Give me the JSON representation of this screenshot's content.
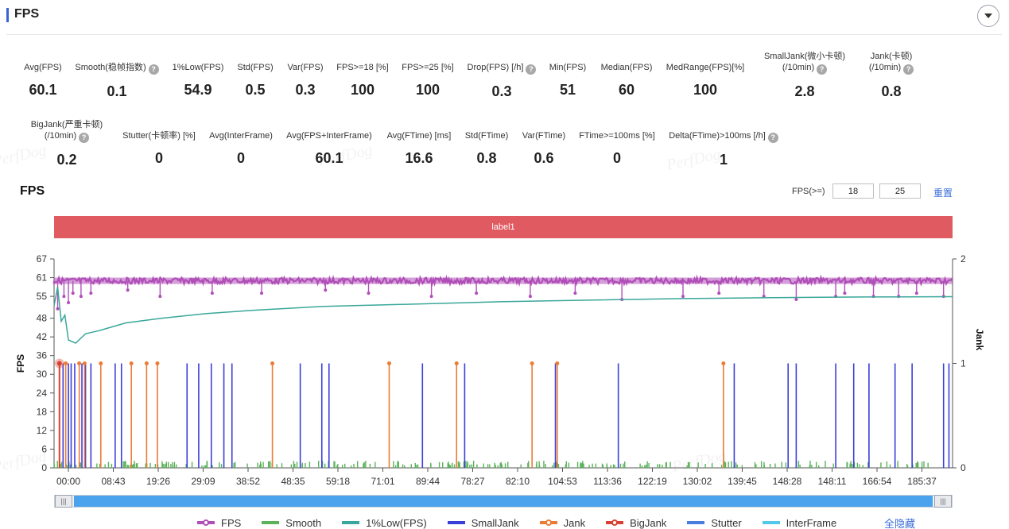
{
  "section": {
    "title": "FPS"
  },
  "stats_row1": [
    {
      "label": "Avg(FPS)",
      "value": "60.1",
      "help": false
    },
    {
      "label": "Smooth(稳帧指数)",
      "value": "0.1",
      "help": true
    },
    {
      "label": "1%Low(FPS)",
      "value": "54.9",
      "help": false
    },
    {
      "label": "Std(FPS)",
      "value": "0.5",
      "help": false
    },
    {
      "label": "Var(FPS)",
      "value": "0.3",
      "help": false
    },
    {
      "label": "FPS>=18 [%]",
      "value": "100",
      "help": false
    },
    {
      "label": "FPS>=25 [%]",
      "value": "100",
      "help": false
    },
    {
      "label": "Drop(FPS) [/h]",
      "value": "0.3",
      "help": true
    },
    {
      "label": "Min(FPS)",
      "value": "51",
      "help": false
    },
    {
      "label": "Median(FPS)",
      "value": "60",
      "help": false
    },
    {
      "label": "MedRange(FPS)[%]",
      "value": "100",
      "help": false
    },
    {
      "label": "SmallJank(微小卡顿)",
      "label2": "(/10min)",
      "value": "2.8",
      "help": true
    },
    {
      "label": "Jank(卡顿)",
      "label2": "(/10min)",
      "value": "0.8",
      "help": true
    }
  ],
  "stats_row2": [
    {
      "label": "BigJank(严重卡顿)",
      "label2": "(/10min)",
      "value": "0.2",
      "help": true
    },
    {
      "label": "Stutter(卡顿率) [%]",
      "value": "0",
      "help": false
    },
    {
      "label": "Avg(InterFrame)",
      "value": "0",
      "help": false
    },
    {
      "label": "Avg(FPS+InterFrame)",
      "value": "60.1",
      "help": false
    },
    {
      "label": "Avg(FTime) [ms]",
      "value": "16.6",
      "help": false
    },
    {
      "label": "Std(FTime)",
      "value": "0.8",
      "help": false
    },
    {
      "label": "Var(FTime)",
      "value": "0.6",
      "help": false
    },
    {
      "label": "FTime>=100ms [%]",
      "value": "0",
      "help": false
    },
    {
      "label": "Delta(FTime)>100ms [/h]",
      "value": "1",
      "help": true
    }
  ],
  "watermark": "PerfDog",
  "chart_header": {
    "title": "FPS",
    "threshold_label": "FPS(>=)",
    "threshold_low": "18",
    "threshold_high": "25",
    "reset": "重置"
  },
  "label_band": "label1",
  "legend": {
    "items": [
      {
        "name": "FPS",
        "color": "#b04fb8",
        "marker": true
      },
      {
        "name": "Smooth",
        "color": "#5bb25a",
        "marker": false
      },
      {
        "name": "1%Low(FPS)",
        "color": "#3aa79a",
        "marker": false
      },
      {
        "name": "SmallJank",
        "color": "#3b3fd9",
        "marker": false
      },
      {
        "name": "Jank",
        "color": "#ec7b35",
        "marker": true
      },
      {
        "name": "BigJank",
        "color": "#d9402f",
        "marker": true
      },
      {
        "name": "Stutter",
        "color": "#4a7fe0",
        "marker": false
      },
      {
        "name": "InterFrame",
        "color": "#54c8e8",
        "marker": false
      }
    ],
    "hide_all": "全隐藏"
  },
  "chart_data": {
    "type": "line",
    "ylabel_left": "FPS",
    "ylabel_right": "Jank",
    "y_ticks_left": [
      "0",
      "6",
      "12",
      "18",
      "24",
      "30",
      "36",
      "42",
      "48",
      "55",
      "61",
      "67"
    ],
    "y_ticks_right": [
      "0",
      "1",
      "2"
    ],
    "x_ticks": [
      "00:00",
      "08:43",
      "19:26",
      "29:09",
      "38:52",
      "48:35",
      "59:18",
      "71:01",
      "89:44",
      "78:27",
      "82:10",
      "104:53",
      "113:36",
      "122:19",
      "130:02",
      "139:45",
      "148:28",
      "148:11",
      "166:54",
      "185:37"
    ],
    "ylim_left": [
      0,
      67
    ],
    "ylim_right": [
      0,
      2
    ],
    "fps_baseline": 60,
    "fps_dips": [
      {
        "x": 0.004,
        "y": 51
      },
      {
        "x": 0.011,
        "y": 55
      },
      {
        "x": 0.016,
        "y": 53
      },
      {
        "x": 0.021,
        "y": 56
      },
      {
        "x": 0.03,
        "y": 55
      },
      {
        "x": 0.041,
        "y": 56
      },
      {
        "x": 0.082,
        "y": 57
      },
      {
        "x": 0.118,
        "y": 55
      },
      {
        "x": 0.176,
        "y": 56
      },
      {
        "x": 0.231,
        "y": 56
      },
      {
        "x": 0.302,
        "y": 57
      },
      {
        "x": 0.35,
        "y": 56
      },
      {
        "x": 0.42,
        "y": 55
      },
      {
        "x": 0.47,
        "y": 56
      },
      {
        "x": 0.53,
        "y": 55
      },
      {
        "x": 0.58,
        "y": 56
      },
      {
        "x": 0.632,
        "y": 54
      },
      {
        "x": 0.7,
        "y": 55
      },
      {
        "x": 0.74,
        "y": 56
      },
      {
        "x": 0.79,
        "y": 55
      },
      {
        "x": 0.826,
        "y": 54
      },
      {
        "x": 0.87,
        "y": 55
      },
      {
        "x": 0.88,
        "y": 56
      },
      {
        "x": 0.912,
        "y": 55
      },
      {
        "x": 0.94,
        "y": 55
      },
      {
        "x": 0.96,
        "y": 56
      },
      {
        "x": 0.99,
        "y": 55
      }
    ],
    "low1_series": [
      [
        0.0,
        52
      ],
      [
        0.004,
        58
      ],
      [
        0.008,
        47
      ],
      [
        0.012,
        49
      ],
      [
        0.016,
        41
      ],
      [
        0.024,
        40
      ],
      [
        0.035,
        43
      ],
      [
        0.05,
        44
      ],
      [
        0.08,
        46.5
      ],
      [
        0.12,
        48
      ],
      [
        0.17,
        49.5
      ],
      [
        0.22,
        50.5
      ],
      [
        0.3,
        51.8
      ],
      [
        0.4,
        52.5
      ],
      [
        0.5,
        53.3
      ],
      [
        0.6,
        53.8
      ],
      [
        0.7,
        54.3
      ],
      [
        0.8,
        54.6
      ],
      [
        0.9,
        54.8
      ],
      [
        1.0,
        54.9
      ]
    ],
    "smalljank_x": [
      0.01,
      0.016,
      0.019,
      0.023,
      0.031,
      0.035,
      0.041,
      0.068,
      0.075,
      0.148,
      0.161,
      0.175,
      0.189,
      0.198,
      0.274,
      0.298,
      0.306,
      0.41,
      0.457,
      0.558,
      0.628,
      0.757,
      0.817,
      0.826,
      0.87,
      0.89,
      0.907,
      0.936,
      0.955,
      0.99,
      0.996
    ],
    "jank_x": [
      0.006,
      0.013,
      0.028,
      0.034,
      0.052,
      0.086,
      0.103,
      0.115,
      0.243,
      0.373,
      0.448,
      0.532,
      0.56,
      0.745
    ],
    "bigjank_x": [
      0.006
    ],
    "smooth_tick_count": 260
  }
}
